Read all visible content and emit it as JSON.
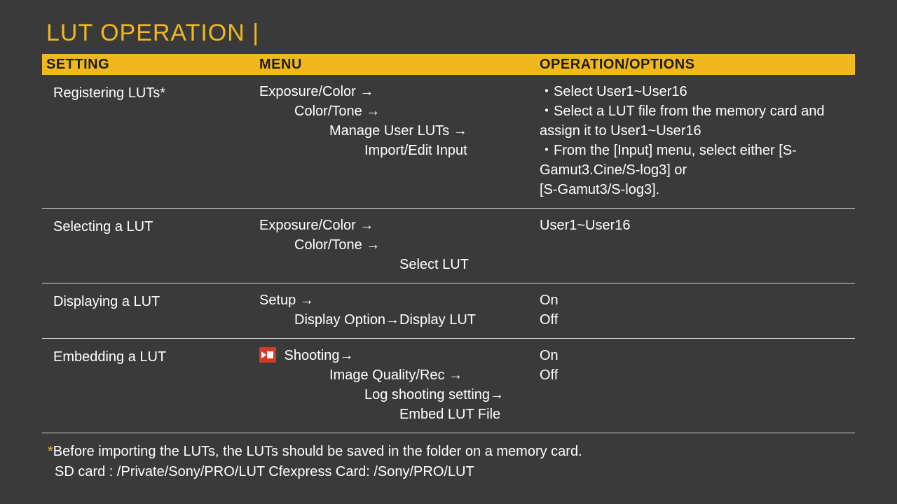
{
  "colors": {
    "background": "#3a3a3a",
    "accent": "#f0b81e",
    "text": "#ffffff",
    "header_text": "#1e1e1e",
    "divider": "#cfcfcf",
    "rec_icon": "#d43a2a"
  },
  "title": "LUT OPERATION |",
  "columns": {
    "setting": "SETTING",
    "menu": "MENU",
    "options": "OPERATION/OPTIONS"
  },
  "rows": [
    {
      "setting": "Registering LUTs*",
      "menu": [
        {
          "text": "Exposure/Color →",
          "indent": 0
        },
        {
          "text": "Color/Tone  →",
          "indent": 1
        },
        {
          "text": "Manage User LUTs →",
          "indent": 2
        },
        {
          "text": "Import/Edit  Input",
          "indent": 3
        }
      ],
      "options": [
        " ・Select User1~User16",
        " ・Select a LUT file from the memory card and assign it to User1~User16",
        "・From the [Input] menu, select either [S-Gamut3.Cine/S-log3] or",
        "[S-Gamut3/S-log3]."
      ]
    },
    {
      "setting": "Selecting a LUT",
      "menu": [
        {
          "text": "Exposure/Color →",
          "indent": 0
        },
        {
          "text": "Color/Tone  →",
          "indent": 1
        },
        {
          "text": "Select LUT",
          "indent": 4
        }
      ],
      "options": [
        "User1~User16"
      ]
    },
    {
      "setting": "Displaying a LUT",
      "menu": [
        {
          "text": "Setup →",
          "indent": 0
        },
        {
          "text": "Display Option→Display LUT",
          "indent": 1
        }
      ],
      "options": [
        "On",
        "Off"
      ]
    },
    {
      "setting": "Embedding a LUT",
      "has_icon": true,
      "menu": [
        {
          "text": "Shooting→",
          "indent": 0
        },
        {
          "text": "Image Quality/Rec →",
          "indent": 2
        },
        {
          "text": "Log shooting setting→",
          "indent": 3
        },
        {
          "text": "Embed LUT File",
          "indent": 4
        }
      ],
      "options": [
        "On",
        "Off"
      ]
    }
  ],
  "footnote": {
    "star": "*",
    "line1": "Before importing the LUTs, the LUTs should be saved in the folder on a memory card.",
    "line2": "SD card : /Private/Sony/PRO/LUT     Cfexpress Card:  /Sony/PRO/LUT"
  }
}
